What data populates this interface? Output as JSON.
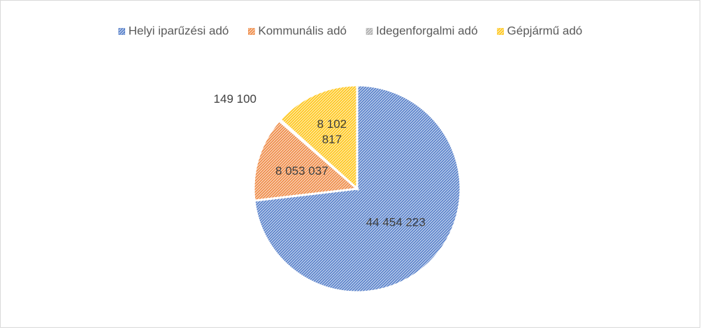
{
  "chart_data": {
    "type": "pie",
    "categories": [
      "Helyi iparűzési adó",
      "Kommunális adó",
      "Idegenforgalmi adó",
      "Gépjármű adó"
    ],
    "values": [
      44454223,
      8053037,
      149100,
      8102817
    ],
    "value_labels": [
      "44 454 223",
      "8 053 037",
      "149 100",
      "8 102 817"
    ],
    "colors": [
      "#4472c4",
      "#ed7d31",
      "#a5a5a5",
      "#ffc000"
    ],
    "legend": "top"
  }
}
